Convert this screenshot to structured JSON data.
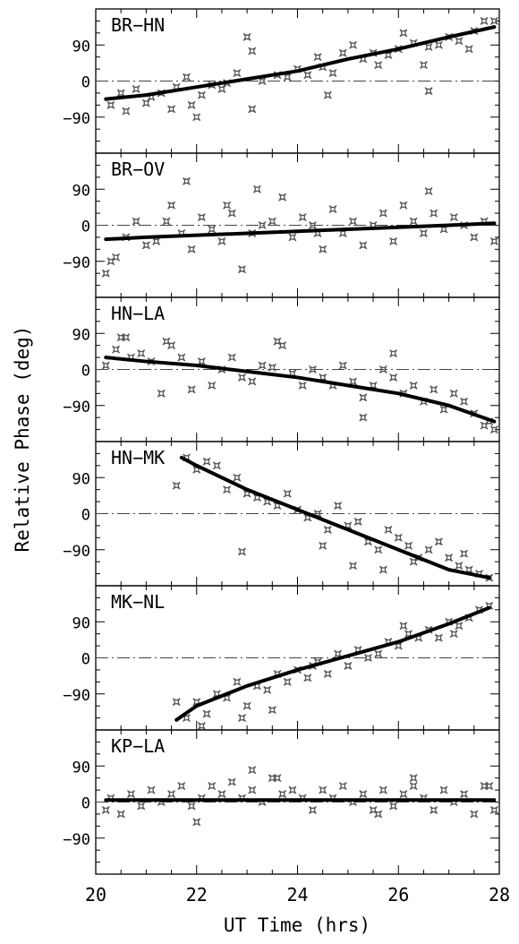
{
  "figure": {
    "xlabel": "UT Time (hrs)",
    "ylabel": "Relative Phase (deg)",
    "xlim": [
      20,
      28
    ],
    "x_ticks": [
      20,
      22,
      24,
      26,
      28
    ],
    "ylim": [
      -180,
      180
    ],
    "y_tick_labels": [
      "90",
      "0",
      "−90"
    ],
    "y_tick_values": [
      90,
      0,
      -90
    ]
  },
  "chart_data": [
    {
      "type": "scatter",
      "panel_label": "BR−HN",
      "xlim": [
        20,
        28
      ],
      "ylim": [
        -180,
        180
      ],
      "zero_line": true,
      "fit": {
        "x": [
          20.2,
          21,
          22,
          23,
          24,
          25,
          26,
          27,
          27.9
        ],
        "y": [
          -45,
          -35,
          -15,
          5,
          25,
          55,
          80,
          110,
          135
        ]
      },
      "points": {
        "x": [
          20.3,
          20.5,
          20.6,
          20.8,
          21,
          21.1,
          21.3,
          21.5,
          21.6,
          21.8,
          21.9,
          22.1,
          22.3,
          22.5,
          22.6,
          22.8,
          23,
          23.1,
          23.3,
          23.6,
          23.8,
          24,
          24.2,
          24.4,
          24.5,
          24.7,
          24.9,
          25.1,
          25.3,
          25.5,
          25.6,
          25.8,
          26,
          26.1,
          26.3,
          26.5,
          26.6,
          26.8,
          27,
          27.2,
          27.4,
          27.5,
          27.7,
          27.9,
          22,
          23.1,
          24.6,
          26.6
        ],
        "y": [
          -60,
          -30,
          -75,
          -20,
          -55,
          -40,
          -30,
          -70,
          -15,
          10,
          -60,
          -35,
          -10,
          -20,
          -5,
          20,
          110,
          75,
          0,
          15,
          10,
          30,
          15,
          60,
          35,
          20,
          70,
          90,
          55,
          70,
          40,
          65,
          80,
          120,
          95,
          40,
          85,
          90,
          110,
          100,
          80,
          125,
          150,
          150,
          -90,
          -70,
          -35,
          -25
        ]
      }
    },
    {
      "type": "scatter",
      "panel_label": "BR−OV",
      "xlim": [
        20,
        28
      ],
      "ylim": [
        -180,
        180
      ],
      "zero_line": true,
      "fit": {
        "x": [
          20.2,
          21,
          22,
          23,
          24,
          25,
          26,
          27,
          27.9
        ],
        "y": [
          -35,
          -30,
          -25,
          -20,
          -15,
          -10,
          -5,
          0,
          5
        ]
      },
      "points": {
        "x": [
          20.2,
          20.4,
          20.6,
          20.8,
          21,
          21.2,
          21.4,
          21.5,
          21.7,
          21.9,
          22.1,
          22.3,
          22.5,
          22.7,
          22.9,
          23.1,
          23.3,
          23.5,
          23.7,
          23.9,
          24.1,
          24.3,
          24.5,
          24.7,
          24.9,
          25.1,
          25.3,
          25.5,
          25.7,
          25.9,
          26.1,
          26.3,
          26.5,
          26.7,
          26.9,
          27.1,
          27.3,
          27.5,
          27.7,
          27.9,
          20.3,
          21.8,
          22.6,
          23.2,
          24.4,
          26.6
        ],
        "y": [
          -120,
          -80,
          -30,
          10,
          -50,
          -40,
          10,
          50,
          -20,
          -60,
          20,
          -10,
          -40,
          30,
          -110,
          -20,
          0,
          10,
          70,
          -30,
          20,
          0,
          -60,
          40,
          -20,
          10,
          -50,
          0,
          30,
          -40,
          50,
          10,
          -20,
          30,
          -10,
          20,
          0,
          -30,
          10,
          -40,
          -90,
          110,
          50,
          90,
          -20,
          85
        ]
      }
    },
    {
      "type": "scatter",
      "panel_label": "HN−LA",
      "xlim": [
        20,
        28
      ],
      "ylim": [
        -180,
        180
      ],
      "zero_line": true,
      "fit": {
        "x": [
          20.2,
          21,
          22,
          23,
          24,
          25,
          26,
          27,
          27.9
        ],
        "y": [
          30,
          20,
          10,
          -5,
          -20,
          -40,
          -60,
          -90,
          -130
        ]
      },
      "points": {
        "x": [
          20.2,
          20.4,
          20.5,
          20.7,
          20.9,
          21.1,
          21.3,
          21.5,
          21.7,
          21.9,
          22.1,
          22.3,
          22.5,
          22.7,
          22.9,
          23.1,
          23.3,
          23.5,
          23.7,
          23.9,
          24.1,
          24.3,
          24.5,
          24.7,
          24.9,
          25.1,
          25.3,
          25.5,
          25.7,
          25.9,
          26.1,
          26.3,
          26.5,
          26.7,
          26.9,
          27.1,
          27.3,
          27.5,
          27.7,
          27.9,
          20.6,
          21.4,
          23.6,
          25.3,
          25.9,
          27.8
        ],
        "y": [
          10,
          50,
          80,
          30,
          40,
          20,
          -60,
          60,
          30,
          -50,
          20,
          -40,
          0,
          30,
          -20,
          -30,
          10,
          5,
          60,
          -10,
          -40,
          0,
          -20,
          -40,
          10,
          -30,
          -70,
          -40,
          0,
          -20,
          -60,
          -40,
          -80,
          -50,
          -100,
          -60,
          -80,
          -110,
          -140,
          -150,
          80,
          70,
          70,
          -120,
          40,
          -130
        ]
      }
    },
    {
      "type": "scatter",
      "panel_label": "HN−MK",
      "xlim": [
        20,
        28
      ],
      "ylim": [
        -180,
        180
      ],
      "zero_line": true,
      "fit": {
        "x": [
          21.7,
          22,
          23,
          24,
          25,
          26,
          27,
          27.8
        ],
        "y": [
          140,
          120,
          60,
          10,
          -40,
          -90,
          -140,
          -160
        ]
      },
      "points": {
        "x": [
          21.6,
          21.8,
          22,
          22.2,
          22.4,
          22.6,
          22.8,
          23,
          23.2,
          23.4,
          23.6,
          23.8,
          24,
          24.2,
          24.4,
          24.6,
          24.8,
          25,
          25.2,
          25.4,
          25.6,
          25.8,
          26,
          26.2,
          26.4,
          26.6,
          26.8,
          27,
          27.2,
          27.4,
          27.6,
          27.8,
          22.9,
          24.5,
          25.1,
          25.7,
          26.3,
          27.3
        ],
        "y": [
          70,
          140,
          110,
          130,
          120,
          60,
          90,
          50,
          40,
          30,
          20,
          50,
          10,
          -10,
          0,
          -40,
          20,
          -30,
          -20,
          -70,
          -90,
          -40,
          -60,
          -80,
          -110,
          -90,
          -70,
          -110,
          -130,
          -140,
          -150,
          -160,
          -95,
          -80,
          -130,
          -140,
          -120,
          -100
        ]
      }
    },
    {
      "type": "scatter",
      "panel_label": "MK−NL",
      "xlim": [
        20,
        28
      ],
      "ylim": [
        -180,
        180
      ],
      "zero_line": true,
      "fit": {
        "x": [
          21.6,
          22,
          23,
          24,
          25,
          26,
          27,
          27.8
        ],
        "y": [
          -155,
          -120,
          -70,
          -30,
          5,
          40,
          85,
          125
        ]
      },
      "points": {
        "x": [
          21.6,
          21.8,
          22,
          22.2,
          22.4,
          22.6,
          22.8,
          23,
          23.2,
          23.4,
          23.6,
          23.8,
          24,
          24.2,
          24.4,
          24.6,
          24.8,
          25,
          25.2,
          25.4,
          25.6,
          25.8,
          26,
          26.2,
          26.4,
          26.6,
          26.8,
          27,
          27.2,
          27.4,
          27.6,
          27.8,
          22.1,
          22.9,
          23.5,
          24.3,
          26.1,
          27.1
        ],
        "y": [
          -110,
          -150,
          -110,
          -140,
          -90,
          -100,
          -60,
          -120,
          -70,
          -80,
          -40,
          -60,
          -30,
          -50,
          -10,
          -40,
          10,
          -20,
          20,
          0,
          10,
          40,
          30,
          60,
          50,
          70,
          50,
          90,
          80,
          100,
          120,
          130,
          -170,
          -150,
          -130,
          -20,
          80,
          60
        ]
      }
    },
    {
      "type": "scatter",
      "panel_label": "KP−LA",
      "xlim": [
        20,
        28
      ],
      "ylim": [
        -180,
        180
      ],
      "zero_line": true,
      "fit": {
        "x": [
          20.2,
          22,
          24,
          26,
          27.9
        ],
        "y": [
          5,
          5,
          5,
          5,
          5
        ]
      },
      "points": {
        "x": [
          20.2,
          20.3,
          20.5,
          20.7,
          20.9,
          21.1,
          21.3,
          21.5,
          21.7,
          21.9,
          22.1,
          22.3,
          22.5,
          22.7,
          22.9,
          23.1,
          23.3,
          23.5,
          23.7,
          23.9,
          24.1,
          24.3,
          24.5,
          24.7,
          24.9,
          25.1,
          25.3,
          25.5,
          25.7,
          25.9,
          26.1,
          26.3,
          26.5,
          26.7,
          26.9,
          27.1,
          27.3,
          27.5,
          27.7,
          27.9,
          22.0,
          23.1,
          23.6,
          25.6,
          26.3,
          27.8
        ],
        "y": [
          -20,
          10,
          -30,
          20,
          -10,
          30,
          0,
          20,
          40,
          -10,
          10,
          40,
          20,
          50,
          10,
          30,
          0,
          60,
          20,
          30,
          10,
          -20,
          30,
          10,
          40,
          0,
          20,
          -20,
          30,
          -10,
          20,
          40,
          10,
          -20,
          30,
          0,
          20,
          -30,
          40,
          -20,
          -50,
          80,
          60,
          -30,
          60,
          40
        ]
      }
    }
  ]
}
